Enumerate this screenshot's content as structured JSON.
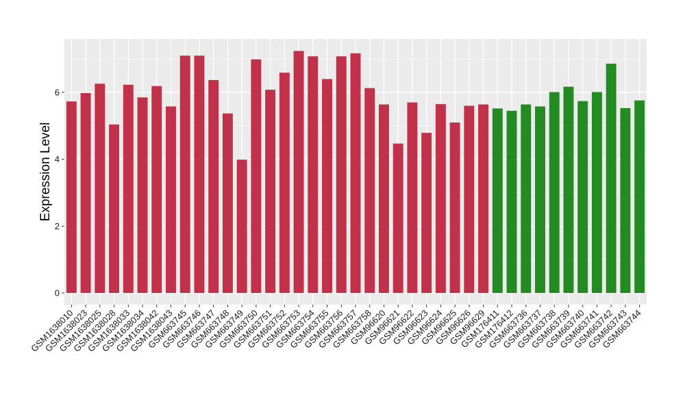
{
  "chart_data": {
    "type": "bar",
    "title": "",
    "xlabel": "",
    "ylabel": "Expression Level",
    "ylim": [
      0,
      7.6
    ],
    "yticks": [
      0,
      2,
      4,
      6
    ],
    "grid": true,
    "categories": [
      "GSM1638010",
      "GSM1638023",
      "GSM1638025",
      "GSM1638028",
      "GSM1638033",
      "GSM1638034",
      "GSM1638042",
      "GSM1638043",
      "GSM663745",
      "GSM663746",
      "GSM663747",
      "GSM663748",
      "GSM663749",
      "GSM663750",
      "GSM663751",
      "GSM663752",
      "GSM663753",
      "GSM663754",
      "GSM663755",
      "GSM663756",
      "GSM663757",
      "GSM663758",
      "GSM96620",
      "GSM96621",
      "GSM96622",
      "GSM96623",
      "GSM96624",
      "GSM96625",
      "GSM96626",
      "GSM96629",
      "GSM176411",
      "GSM176412",
      "GSM663736",
      "GSM663737",
      "GSM663738",
      "GSM663739",
      "GSM663740",
      "GSM663741",
      "GSM663742",
      "GSM663743",
      "GSM663744"
    ],
    "values": [
      5.73,
      5.98,
      6.26,
      5.04,
      6.23,
      5.85,
      6.19,
      5.58,
      7.1,
      7.1,
      6.37,
      5.37,
      3.99,
      6.99,
      6.08,
      6.59,
      7.24,
      7.08,
      6.4,
      7.08,
      7.17,
      6.13,
      5.64,
      4.47,
      5.7,
      4.79,
      5.65,
      5.1,
      5.6,
      5.64,
      5.52,
      5.45,
      5.64,
      5.58,
      6.01,
      6.17,
      5.74,
      6.01,
      6.86,
      5.53,
      5.76
    ],
    "groups": [
      "a",
      "a",
      "a",
      "a",
      "a",
      "a",
      "a",
      "a",
      "a",
      "a",
      "a",
      "a",
      "a",
      "a",
      "a",
      "a",
      "a",
      "a",
      "a",
      "a",
      "a",
      "a",
      "a",
      "a",
      "a",
      "a",
      "a",
      "a",
      "a",
      "a",
      "b",
      "b",
      "b",
      "b",
      "b",
      "b",
      "b",
      "b",
      "b",
      "b",
      "b"
    ],
    "colors": {
      "a": "#c1314a",
      "b": "#238b22",
      "panel": "#ebebeb",
      "grid": "#ffffff"
    }
  }
}
